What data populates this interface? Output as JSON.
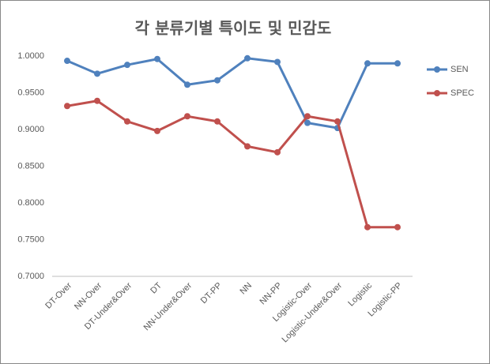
{
  "chart_data": {
    "type": "line",
    "title": "각 분류기별 특이도 및 민감도",
    "categories": [
      "DT-Over",
      "NN-Over",
      "DT-Under&Over",
      "DT",
      "NN-Under&Over",
      "DT-PP",
      "NN",
      "NN-PP",
      "Logistic-Over",
      "Logistic-Under&Over",
      "Logistic",
      "Logistic-PP"
    ],
    "series": [
      {
        "name": "SEN",
        "color": "#4f81bd",
        "values": [
          0.9935,
          0.976,
          0.988,
          0.996,
          0.961,
          0.967,
          0.997,
          0.992,
          0.909,
          0.902,
          0.99,
          0.99
        ]
      },
      {
        "name": "SPEC",
        "color": "#c0504d",
        "values": [
          0.932,
          0.939,
          0.911,
          0.898,
          0.918,
          0.911,
          0.877,
          0.869,
          0.918,
          0.911,
          0.767,
          0.767
        ]
      }
    ],
    "ylim": [
      0.7,
      1.0
    ],
    "yticks": [
      {
        "value": 0.7,
        "label": "0.7000"
      },
      {
        "value": 0.75,
        "label": "0.7500"
      },
      {
        "value": 0.8,
        "label": "0.8000"
      },
      {
        "value": 0.85,
        "label": "0.8500"
      },
      {
        "value": 0.9,
        "label": "0.9000"
      },
      {
        "value": 0.95,
        "label": "0.9500"
      },
      {
        "value": 1.0,
        "label": "1.0000"
      }
    ],
    "grid": false,
    "legend": "right"
  }
}
